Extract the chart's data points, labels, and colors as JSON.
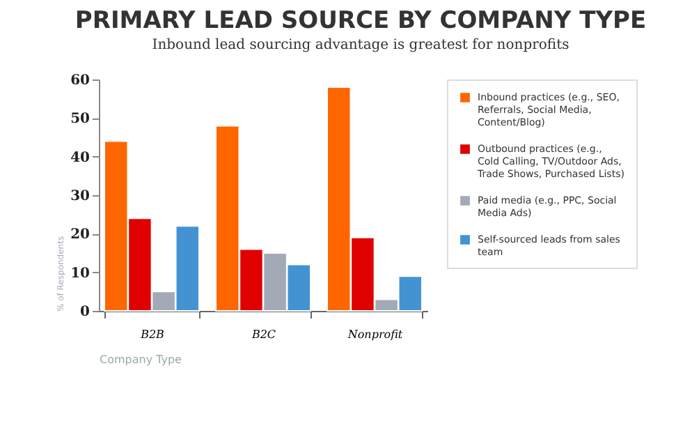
{
  "chart_data": {
    "type": "bar",
    "title": "PRIMARY LEAD SOURCE BY COMPANY TYPE",
    "subtitle": "Inbound lead sourcing advantage is greatest for nonprofits",
    "xlabel": "Company Type",
    "ylabel": "% of Respondents",
    "categories": [
      "B2B",
      "B2C",
      "Nonprofit"
    ],
    "series": [
      {
        "name": "Inbound practices (e.g., SEO, Referrals, Social Media, Content/Blog)",
        "color": "#ff6600",
        "values": [
          44,
          48,
          58
        ]
      },
      {
        "name": "Outbound practices (e.g., Cold Calling, TV/Outdoor Ads, Trade Shows, Purchased Lists)",
        "color": "#e00000",
        "values": [
          24,
          16,
          19
        ]
      },
      {
        "name": "Paid media (e.g., PPC, Social Media Ads)",
        "color": "#a3a9b6",
        "values": [
          5,
          15,
          3
        ]
      },
      {
        "name": "Self-sourced leads from sales team",
        "color": "#4393d3",
        "values": [
          22,
          12,
          9
        ]
      }
    ],
    "ylim": [
      0,
      60
    ],
    "yticks": [
      0,
      10,
      20,
      30,
      40,
      50,
      60
    ],
    "grid": false,
    "legend": "right"
  }
}
